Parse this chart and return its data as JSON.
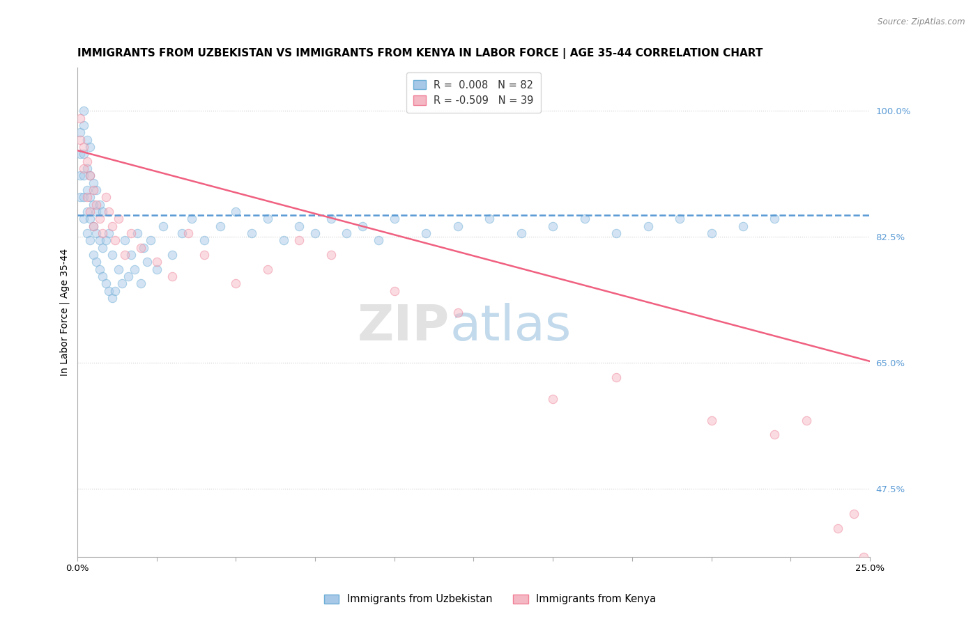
{
  "title": "IMMIGRANTS FROM UZBEKISTAN VS IMMIGRANTS FROM KENYA IN LABOR FORCE | AGE 35-44 CORRELATION CHART",
  "source": "Source: ZipAtlas.com",
  "xlabel_uzbekistan": "Immigrants from Uzbekistan",
  "xlabel_kenya": "Immigrants from Kenya",
  "ylabel": "In Labor Force | Age 35-44",
  "xlim": [
    0.0,
    0.25
  ],
  "ylim": [
    0.38,
    1.06
  ],
  "xticks": [
    0.0,
    0.025,
    0.05,
    0.075,
    0.1,
    0.125,
    0.15,
    0.175,
    0.2,
    0.225,
    0.25
  ],
  "xticklabels_show": [
    "0.0%",
    "25.0%"
  ],
  "yticks": [
    0.475,
    0.65,
    0.825,
    1.0
  ],
  "yticklabels": [
    "47.5%",
    "65.0%",
    "82.5%",
    "100.0%"
  ],
  "legend_r_uzbekistan_val": "0.008",
  "legend_n_uzbekistan": "N = 82",
  "legend_r_kenya_val": "-0.509",
  "legend_n_kenya": "N = 39",
  "color_uzbekistan_fill": "#A8C8E8",
  "color_uzbekistan_edge": "#6BAED6",
  "color_kenya_fill": "#F4B8C4",
  "color_kenya_edge": "#F08098",
  "color_uzbekistan_trend": "#5B9BD5",
  "color_kenya_trend": "#F06080",
  "color_right_axis": "#5B9BD5",
  "uzbekistan_scatter_x": [
    0.001,
    0.001,
    0.001,
    0.001,
    0.002,
    0.002,
    0.002,
    0.002,
    0.002,
    0.002,
    0.003,
    0.003,
    0.003,
    0.003,
    0.003,
    0.004,
    0.004,
    0.004,
    0.004,
    0.004,
    0.005,
    0.005,
    0.005,
    0.005,
    0.006,
    0.006,
    0.006,
    0.006,
    0.007,
    0.007,
    0.007,
    0.008,
    0.008,
    0.008,
    0.009,
    0.009,
    0.01,
    0.01,
    0.011,
    0.011,
    0.012,
    0.013,
    0.014,
    0.015,
    0.016,
    0.017,
    0.018,
    0.019,
    0.02,
    0.021,
    0.022,
    0.023,
    0.025,
    0.027,
    0.03,
    0.033,
    0.036,
    0.04,
    0.045,
    0.05,
    0.055,
    0.06,
    0.065,
    0.07,
    0.075,
    0.08,
    0.085,
    0.09,
    0.095,
    0.1,
    0.11,
    0.12,
    0.13,
    0.14,
    0.15,
    0.16,
    0.17,
    0.18,
    0.19,
    0.2,
    0.21,
    0.22
  ],
  "uzbekistan_scatter_y": [
    0.88,
    0.91,
    0.94,
    0.97,
    0.85,
    0.88,
    0.91,
    0.94,
    0.98,
    1.0,
    0.83,
    0.86,
    0.89,
    0.92,
    0.96,
    0.82,
    0.85,
    0.88,
    0.91,
    0.95,
    0.8,
    0.84,
    0.87,
    0.9,
    0.79,
    0.83,
    0.86,
    0.89,
    0.78,
    0.82,
    0.87,
    0.77,
    0.81,
    0.86,
    0.76,
    0.82,
    0.75,
    0.83,
    0.74,
    0.8,
    0.75,
    0.78,
    0.76,
    0.82,
    0.77,
    0.8,
    0.78,
    0.83,
    0.76,
    0.81,
    0.79,
    0.82,
    0.78,
    0.84,
    0.8,
    0.83,
    0.85,
    0.82,
    0.84,
    0.86,
    0.83,
    0.85,
    0.82,
    0.84,
    0.83,
    0.85,
    0.83,
    0.84,
    0.82,
    0.85,
    0.83,
    0.84,
    0.85,
    0.83,
    0.84,
    0.85,
    0.83,
    0.84,
    0.85,
    0.83,
    0.84,
    0.85
  ],
  "kenya_scatter_x": [
    0.001,
    0.001,
    0.002,
    0.002,
    0.003,
    0.003,
    0.004,
    0.004,
    0.005,
    0.005,
    0.006,
    0.007,
    0.008,
    0.009,
    0.01,
    0.011,
    0.012,
    0.013,
    0.015,
    0.017,
    0.02,
    0.025,
    0.03,
    0.035,
    0.04,
    0.05,
    0.06,
    0.07,
    0.08,
    0.1,
    0.12,
    0.15,
    0.17,
    0.2,
    0.22,
    0.23,
    0.24,
    0.245,
    0.248
  ],
  "kenya_scatter_y": [
    0.96,
    0.99,
    0.92,
    0.95,
    0.88,
    0.93,
    0.86,
    0.91,
    0.84,
    0.89,
    0.87,
    0.85,
    0.83,
    0.88,
    0.86,
    0.84,
    0.82,
    0.85,
    0.8,
    0.83,
    0.81,
    0.79,
    0.77,
    0.83,
    0.8,
    0.76,
    0.78,
    0.82,
    0.8,
    0.75,
    0.72,
    0.6,
    0.63,
    0.57,
    0.55,
    0.57,
    0.42,
    0.44,
    0.38
  ],
  "uzbekistan_trend_x": [
    0.0,
    0.25
  ],
  "uzbekistan_trend_y": [
    0.855,
    0.855
  ],
  "kenya_trend_x": [
    0.0,
    0.25
  ],
  "kenya_trend_y": [
    0.945,
    0.652
  ],
  "watermark_zip": "ZIP",
  "watermark_atlas": "atlas",
  "background_color": "#FFFFFF",
  "dot_size": 80,
  "dot_alpha": 0.5,
  "title_fontsize": 11,
  "axis_fontsize": 10,
  "tick_fontsize": 9.5,
  "legend_fontsize": 10.5
}
